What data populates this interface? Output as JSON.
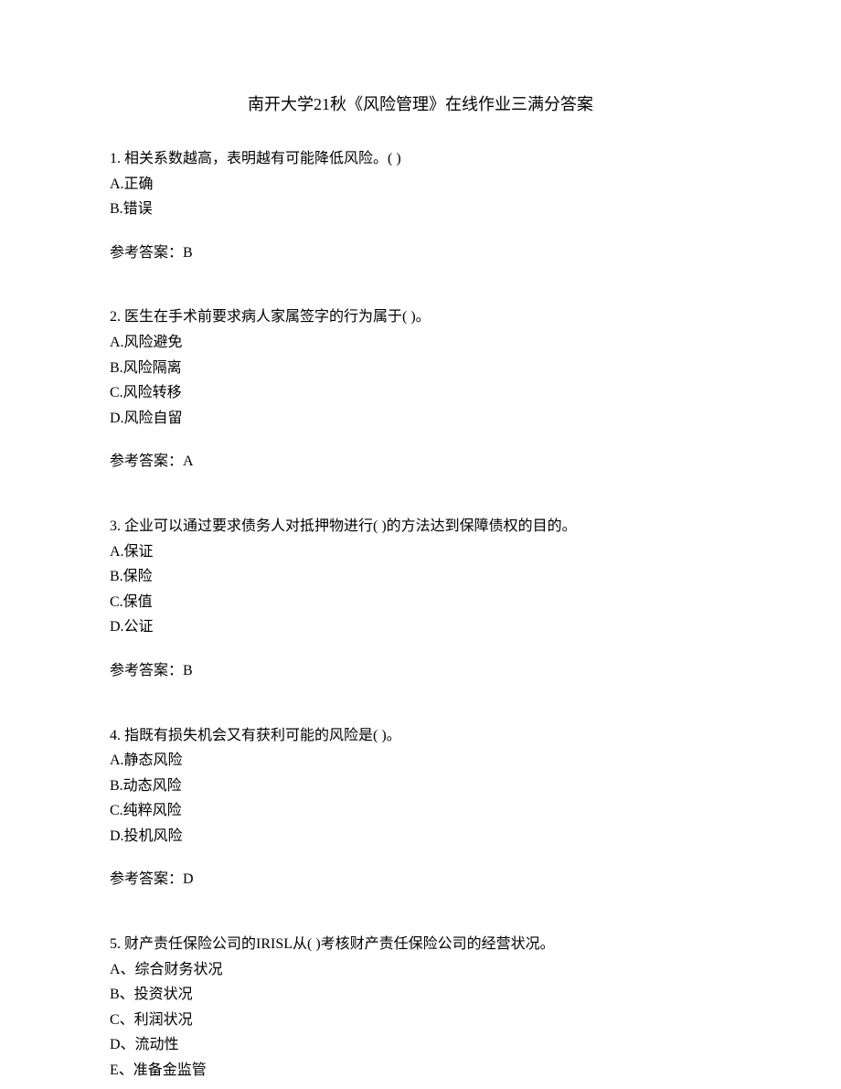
{
  "title": "南开大学21秋《风险管理》在线作业三满分答案",
  "questions": [
    {
      "number": "1.",
      "text": "相关系数越高，表明越有可能降低风险。(   )",
      "options": [
        "A.正确",
        "B.错误"
      ],
      "answer": "参考答案：B"
    },
    {
      "number": "2.",
      "text": "医生在手术前要求病人家属签字的行为属于(   )。",
      "options": [
        "A.风险避免",
        "B.风险隔离",
        "C.风险转移",
        "D.风险自留"
      ],
      "answer": "参考答案：A"
    },
    {
      "number": "3.",
      "text": "企业可以通过要求债务人对抵押物进行(   )的方法达到保障债权的目的。",
      "options": [
        "A.保证",
        "B.保险",
        "C.保值",
        "D.公证"
      ],
      "answer": "参考答案：B"
    },
    {
      "number": "4.",
      "text": "指既有损失机会又有获利可能的风险是(   )。",
      "options": [
        "A.静态风险",
        "B.动态风险",
        "C.纯粹风险",
        "D.投机风险"
      ],
      "answer": "参考答案：D"
    },
    {
      "number": "5.",
      "text": "财产责任保险公司的IRISL从(   )考核财产责任保险公司的经营状况。",
      "options": [
        "A、综合财务状况",
        "B、投资状况",
        "C、利润状况",
        "D、流动性",
        "E、准备金监管"
      ],
      "answer": null
    }
  ]
}
